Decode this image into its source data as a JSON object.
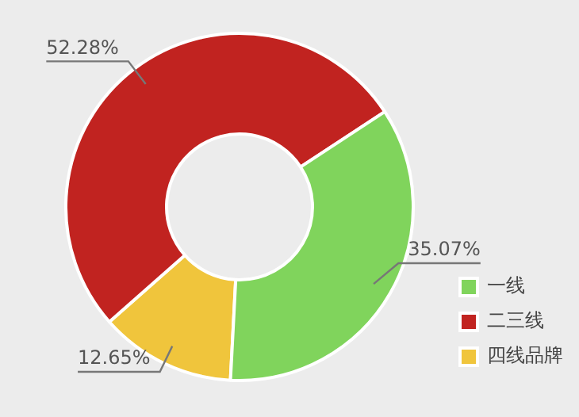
{
  "chart_data": {
    "type": "donut",
    "categories": [
      "一线",
      "二三线",
      "四线品牌"
    ],
    "values": [
      35.07,
      52.28,
      12.65
    ],
    "value_labels": [
      "35.07%",
      "52.28%",
      "12.65%"
    ],
    "colors": [
      "#80d45c",
      "#c12320",
      "#f0c53c"
    ],
    "legend": "bottom right"
  }
}
